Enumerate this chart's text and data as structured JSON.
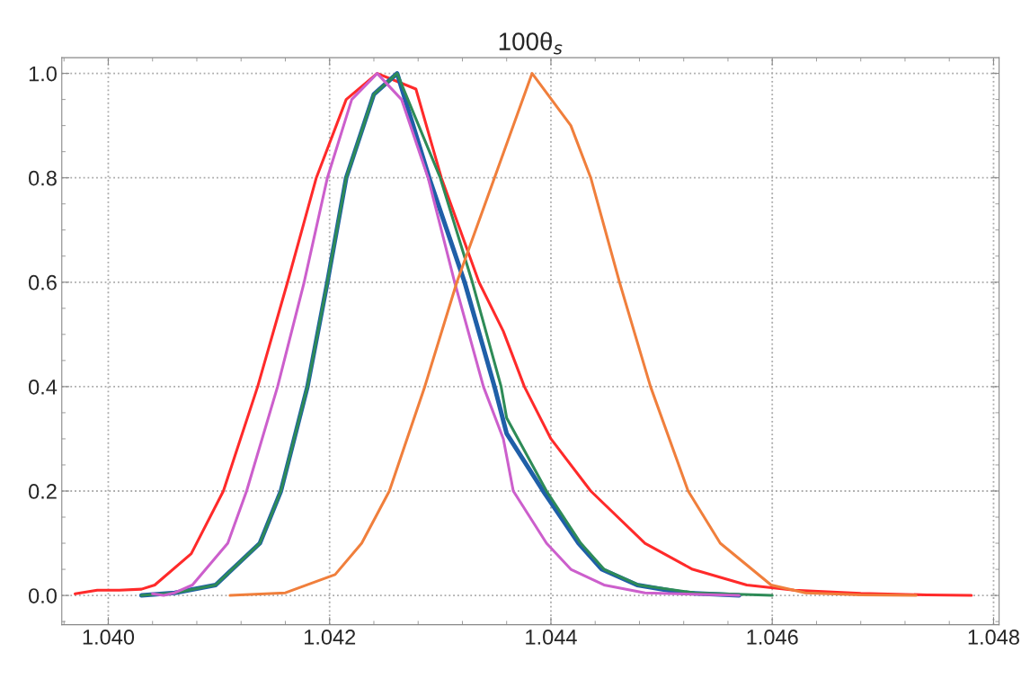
{
  "chart_data": {
    "type": "line",
    "title": "100θ$_{s}$",
    "xlim": [
      1.03958,
      1.04805
    ],
    "xticks": [
      {
        "value": 1.04,
        "label": "1.040"
      },
      {
        "value": 1.042,
        "label": "1.042"
      },
      {
        "value": 1.044,
        "label": "1.044"
      },
      {
        "value": 1.046,
        "label": "1.046"
      },
      {
        "value": 1.048,
        "label": "1.048"
      }
    ],
    "ylim": [
      -0.056,
      1.03
    ],
    "yticks": [
      {
        "value": 0,
        "label": "0.0"
      },
      {
        "value": 0.2,
        "label": "0.2"
      },
      {
        "value": 0.4,
        "label": "0.4"
      },
      {
        "value": 0.6,
        "label": "0.6"
      },
      {
        "value": 0.8,
        "label": "0.8"
      },
      {
        "value": 1.0,
        "label": "1.0"
      }
    ],
    "grid": true,
    "legend": false,
    "line_style": "solid",
    "marker": "none",
    "series": [
      {
        "color": "#ff2a2a",
        "x": [
          1.0397,
          1.0399,
          1.0401,
          1.0403,
          1.04042,
          1.04075,
          1.04104,
          1.04135,
          1.04162,
          1.04188,
          1.04215,
          1.04243,
          1.04278,
          1.04301,
          1.04335,
          1.04357,
          1.04376,
          1.044,
          1.04436,
          1.04485,
          1.04528,
          1.04577,
          1.0462,
          1.0468,
          1.0474,
          1.0478
        ],
        "values": [
          0.003,
          0.01,
          0.01,
          0.012,
          0.02,
          0.08,
          0.2,
          0.4,
          0.6,
          0.8,
          0.95,
          1.0,
          0.97,
          0.8,
          0.6,
          0.506,
          0.4,
          0.3,
          0.2,
          0.1,
          0.05,
          0.02,
          0.01,
          0.004,
          0.001,
          0.0
        ]
      },
      {
        "color": "#1f5fa8",
        "x": [
          1.0403,
          1.0406,
          1.04097,
          1.04137,
          1.04156,
          1.0418,
          1.04198,
          1.04215,
          1.0424,
          1.04261,
          1.0429,
          1.04322,
          1.04349,
          1.0436,
          1.04393,
          1.04425,
          1.04446,
          1.04478,
          1.0452,
          1.0457
        ],
        "values": [
          0.0,
          0.005,
          0.02,
          0.1,
          0.2,
          0.4,
          0.6,
          0.8,
          0.96,
          1.0,
          0.8,
          0.6,
          0.4,
          0.31,
          0.2,
          0.1,
          0.05,
          0.02,
          0.005,
          0.0
        ]
      },
      {
        "color": "#2e8b57",
        "x": [
          1.0403,
          1.0406,
          1.04097,
          1.04137,
          1.04156,
          1.0418,
          1.04198,
          1.04215,
          1.0424,
          1.04261,
          1.043,
          1.04329,
          1.04355,
          1.0436,
          1.04396,
          1.04427,
          1.04448,
          1.04479,
          1.0453,
          1.046
        ],
        "values": [
          0.0,
          0.005,
          0.02,
          0.1,
          0.2,
          0.4,
          0.6,
          0.8,
          0.96,
          1.0,
          0.8,
          0.6,
          0.4,
          0.34,
          0.2,
          0.1,
          0.05,
          0.02,
          0.005,
          0.0
        ]
      },
      {
        "color": "#cc5fcc",
        "x": [
          1.0404,
          1.0405,
          1.0406,
          1.04076,
          1.04108,
          1.04125,
          1.04153,
          1.04177,
          1.04198,
          1.0422,
          1.04243,
          1.04265,
          1.04289,
          1.04313,
          1.04339,
          1.04357,
          1.04366,
          1.04396,
          1.04418,
          1.04448,
          1.04485,
          1.0457
        ],
        "values": [
          0.003,
          0.0,
          0.005,
          0.02,
          0.1,
          0.2,
          0.4,
          0.6,
          0.8,
          0.95,
          1.0,
          0.95,
          0.8,
          0.6,
          0.4,
          0.3,
          0.2,
          0.1,
          0.05,
          0.02,
          0.005,
          0.0
        ]
      },
      {
        "color": "#f07f3c",
        "x": [
          1.0411,
          1.0416,
          1.04205,
          1.04229,
          1.04254,
          1.04286,
          1.04315,
          1.04349,
          1.04383,
          1.04418,
          1.04436,
          1.04462,
          1.0449,
          1.04524,
          1.04553,
          1.04599,
          1.0463,
          1.0468,
          1.0473
        ],
        "values": [
          0.0,
          0.005,
          0.04,
          0.1,
          0.2,
          0.4,
          0.6,
          0.8,
          1.0,
          0.9,
          0.8,
          0.6,
          0.4,
          0.2,
          0.1,
          0.02,
          0.005,
          0.001,
          0.0
        ]
      }
    ]
  }
}
